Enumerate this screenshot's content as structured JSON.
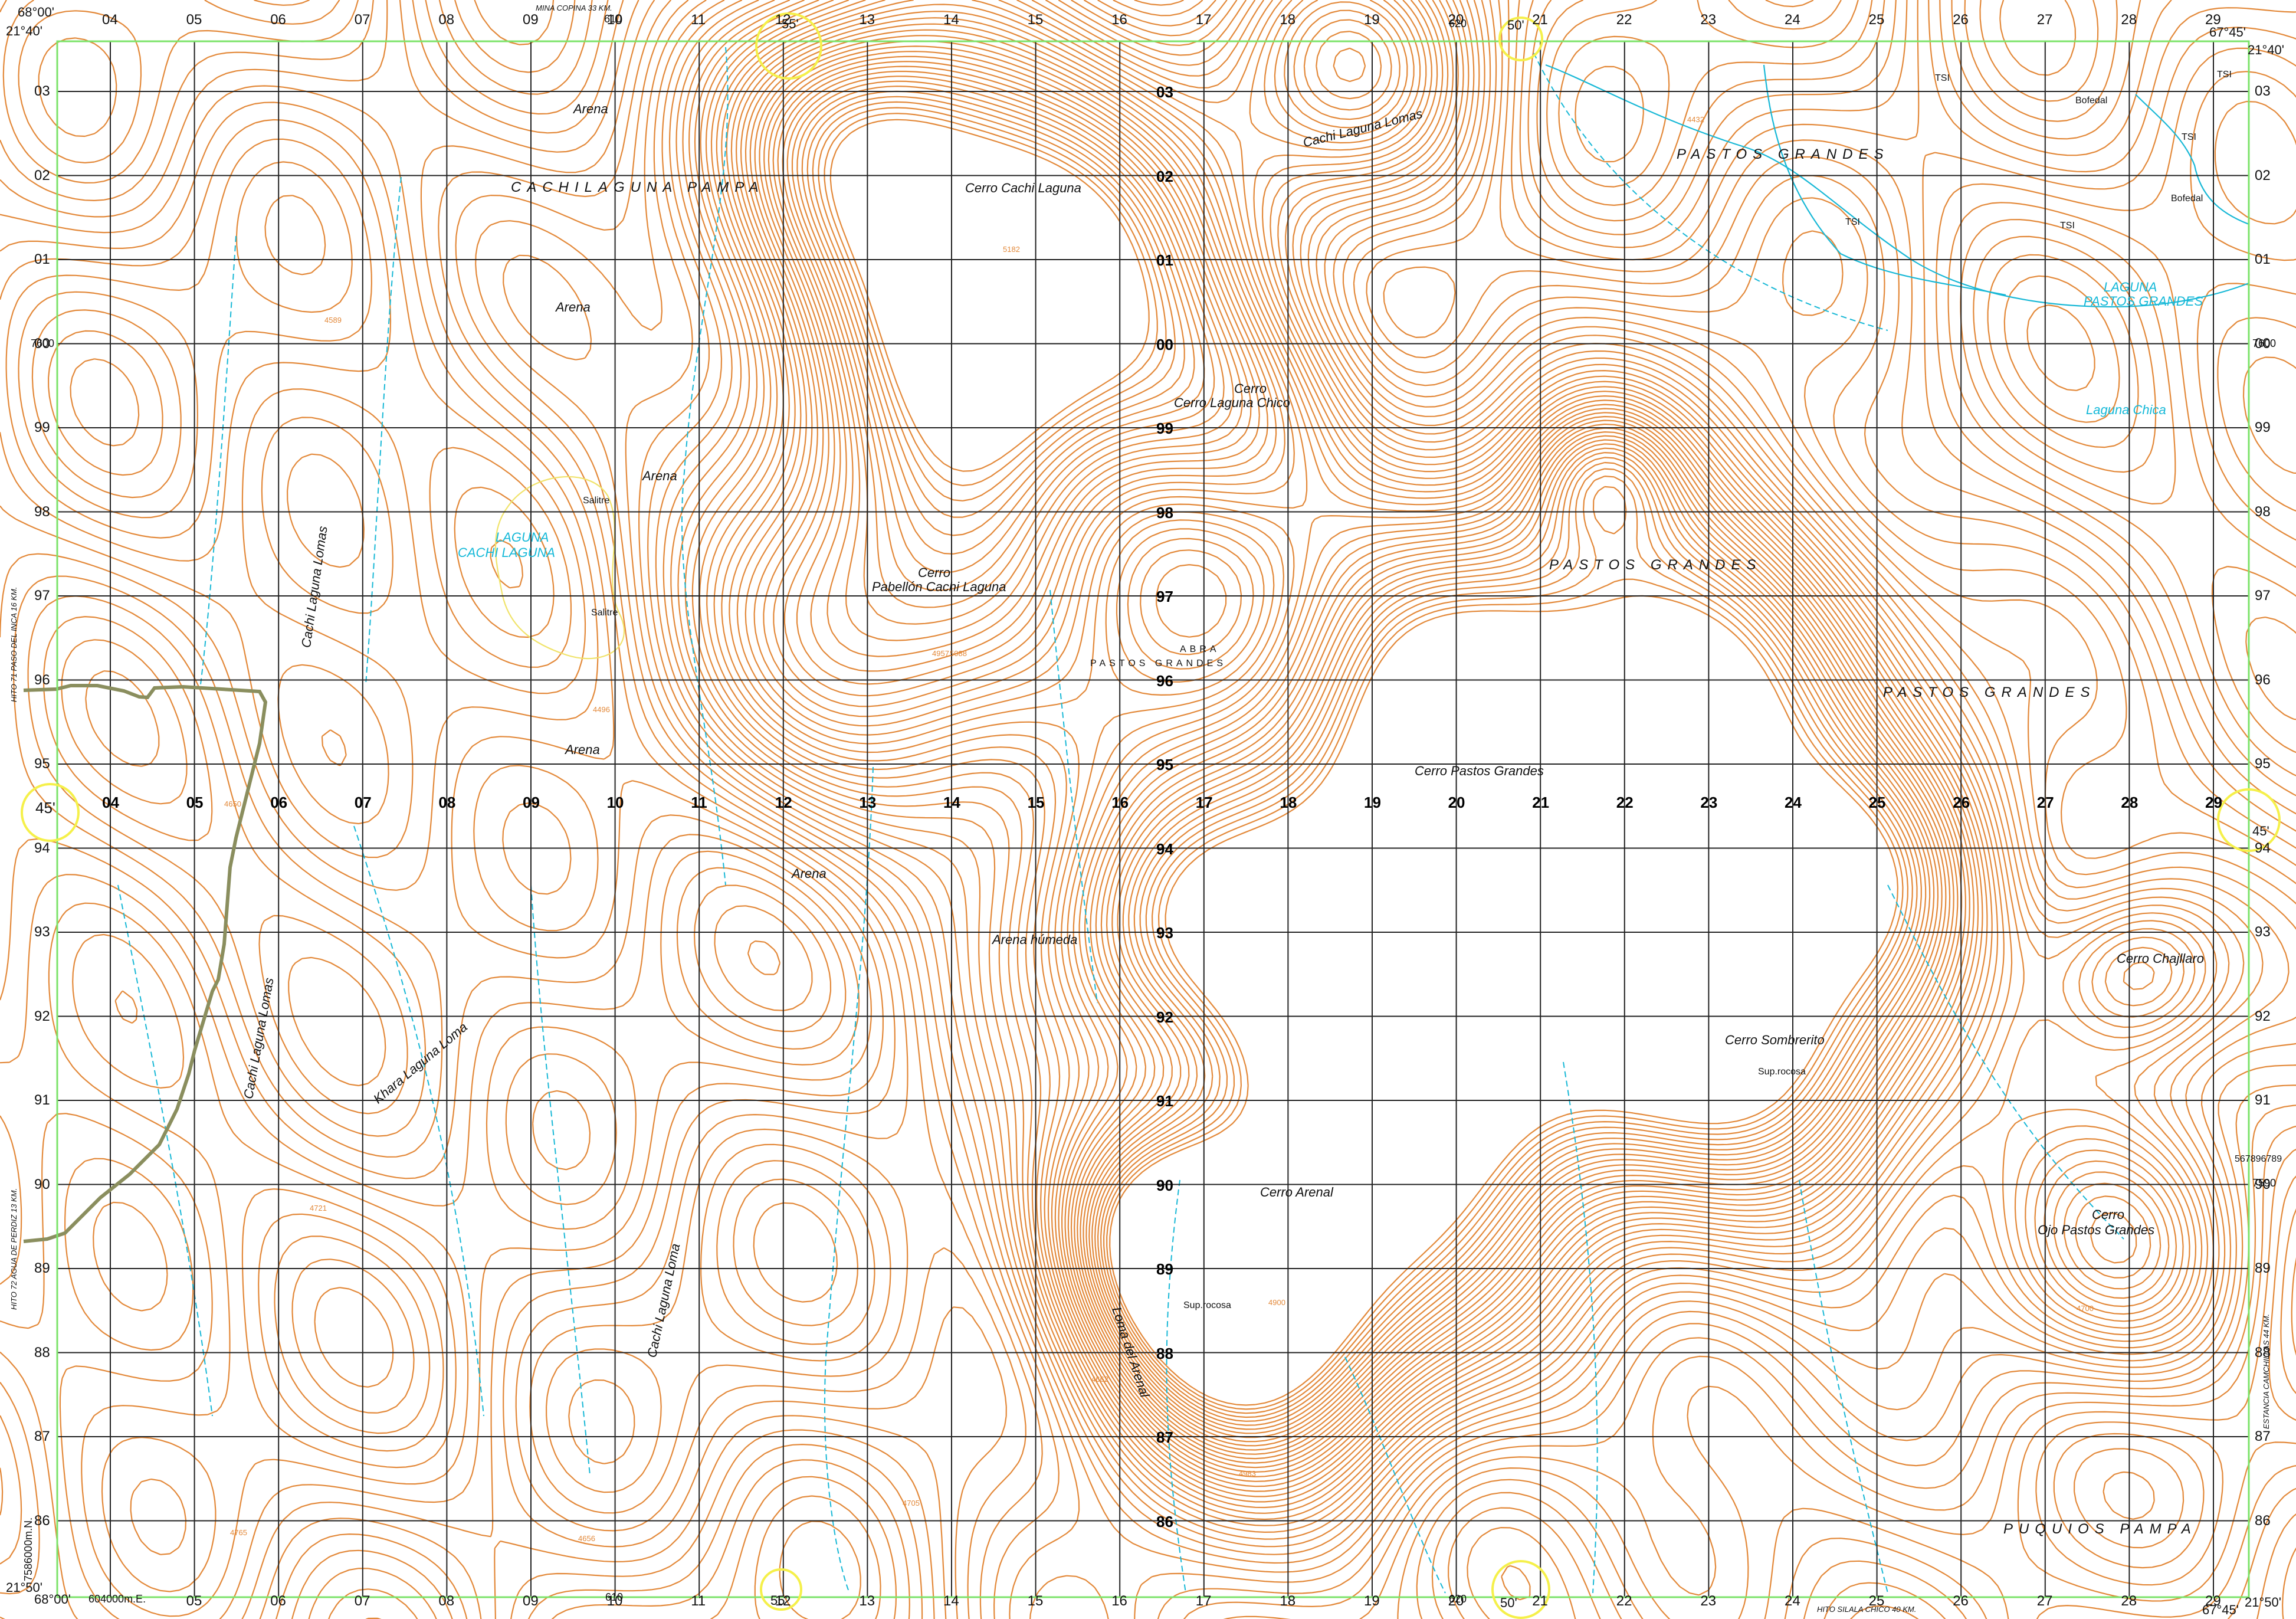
{
  "colors": {
    "contour": "#e3893a",
    "water": "#18b8d6",
    "grid": "#222222",
    "frame": "#7ce36a",
    "road": "#8a8e5e",
    "marker": "#f5f04a",
    "background": "#ffffff"
  },
  "map": {
    "top_eastings": [
      "04",
      "05",
      "06",
      "07",
      "08",
      "09",
      "10",
      "11",
      "12",
      "13",
      "14",
      "15",
      "16",
      "17",
      "18",
      "19",
      "20",
      "21",
      "22",
      "23",
      "24",
      "25",
      "26",
      "27",
      "28",
      "29"
    ],
    "mid_eastings": [
      "04",
      "05",
      "06",
      "07",
      "08",
      "09",
      "10",
      "11",
      "12",
      "13",
      "14",
      "15",
      "16",
      "17",
      "18",
      "19",
      "20",
      "21",
      "22",
      "23",
      "24",
      "25",
      "26",
      "27",
      "28",
      "29"
    ],
    "bottom_eastings": [
      "05",
      "06",
      "07",
      "08",
      "09",
      "10",
      "11",
      "12",
      "13",
      "14",
      "15",
      "16",
      "17",
      "18",
      "19",
      "20",
      "21",
      "22",
      "23",
      "24",
      "25",
      "26",
      "27",
      "28",
      "29"
    ],
    "northings": [
      "03",
      "02",
      "01",
      "00",
      "99",
      "98",
      "97",
      "96",
      "95",
      "94",
      "93",
      "92",
      "91",
      "90",
      "89",
      "88",
      "87",
      "86"
    ],
    "inner_northings": [
      "03",
      "02",
      "01",
      "00",
      "99",
      "98",
      "97",
      "96",
      "95",
      "94",
      "93",
      "92",
      "91",
      "90",
      "89",
      "88",
      "87",
      "86"
    ],
    "corner_labels": {
      "top_left_lon": "68°00'",
      "top_left_lat": "21°40'",
      "top_right_lon": "67°45'",
      "top_right_lat": "21°40'",
      "bottom_left_lat": "21°50'",
      "bottom_left_lon": "68°00'",
      "bottom_right_lat": "21°50'",
      "bottom_right_lon": "67°45'",
      "top_55": "55'",
      "top_50": "50'",
      "top_610": "610",
      "top_620": "620",
      "bottom_55": "55'",
      "bottom_50": "50'",
      "bottom_610": "610",
      "bottom_620": "620",
      "left_45": "45'",
      "right_45": "45'",
      "left_7600": "7600",
      "right_7600": "7600",
      "left_7590": "7590",
      "right_7590": "7590",
      "bottom_easting": "604000m.E.",
      "left_northing": "7586000m.N.",
      "right_digits": "567896789"
    },
    "labels": {
      "arena": "Arena",
      "salitre": "Salitre",
      "arena_humeda": "Arena húmeda",
      "cachilaguna_pampa": "CACHILAGUNA PAMPA",
      "pastos_grandes": "PASTOS GRANDES",
      "puquios_pampa": "PUQUIOS PAMPA",
      "abra": "ABRA",
      "abra_pastos_grandes": "PASTOS GRANDES",
      "cerro": "Cerro",
      "cerro_cachi_laguna": "Cerro Cachi Laguna",
      "cerro_laguna_chico": "Cerro Laguna Chico",
      "pabellon_cachi_laguna": "Pabellón Cachi Laguna",
      "cerro_pastos_grandes": "Cerro Pastos Grandes",
      "cerro_sombrerito": "Cerro Sombrerito",
      "cerro_arenal": "Cerro Arenal",
      "cerro_chajllaro": "Cerro Chajllaro",
      "ojo_pastos_grandes": "Ojo Pastos Grandes",
      "sup_rocosa": "Sup.rocosa",
      "cachi_laguna_lomas": "Cachi Laguna Lomas",
      "khara_laguna_loma": "Khara Laguna Loma",
      "cachi_laguna_loma": "Cachi Laguna Loma",
      "loma_del_arenal": "Loma del Arenal",
      "cachi_laguna_lomas_top": "Cachi Laguna Lomas",
      "laguna": "LAGUNA",
      "cachi_laguna_lake": "CACHI LAGUNA",
      "laguna_pastos_grandes": "LAGUNA",
      "pastos_grandes_lake": "PASTOS GRANDES",
      "laguna_chica": "Laguna Chica",
      "tsi": "TSI",
      "bofedal": "Bofedal"
    },
    "edge_notes": {
      "mina_copina": "MINA COPINA 33 KM.",
      "hito_paso": "HITO 71 PASO DEL INCA 16 KM.",
      "hito_agua": "HITO 72 AGUA DE PERDIZ 13 KM.",
      "hito_silala": "HITO SILALA CHICO 40 KM.",
      "estancia": "ESTANCIA CAMCHILLAS 44 KM."
    },
    "spot_heights": [
      "4432",
      "4589",
      "4650",
      "4496",
      "4721",
      "4957",
      "4705",
      "4765",
      "4656",
      "5182",
      "5088",
      "4900",
      "4983",
      "4700",
      "4662"
    ]
  }
}
